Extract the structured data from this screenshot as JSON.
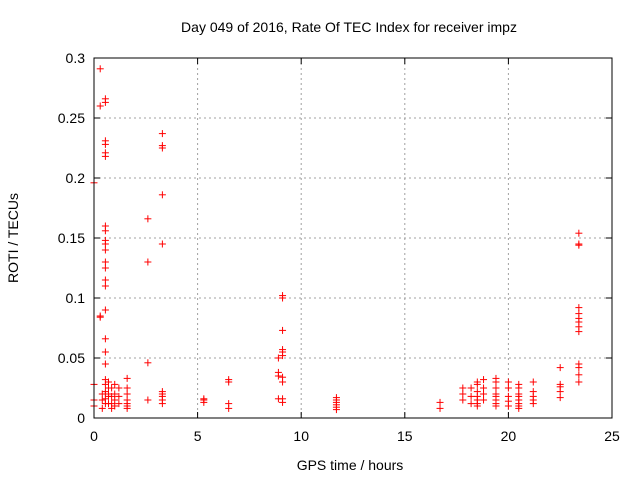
{
  "chart_data": {
    "type": "scatter",
    "title": "Day 049 of 2016, Rate Of TEC Index for receiver impz",
    "xlabel": "GPS time / hours",
    "ylabel": "ROTI / TECUs",
    "xlim": [
      0,
      25
    ],
    "ylim": [
      0,
      0.3
    ],
    "xticks": [
      0,
      5,
      10,
      15,
      20,
      25
    ],
    "xtick_labels": [
      "0",
      "5",
      "10",
      "15",
      "20",
      "25"
    ],
    "yticks": [
      0,
      0.05,
      0.1,
      0.15,
      0.2,
      0.25,
      0.3
    ],
    "ytick_labels": [
      "0",
      "0.05",
      "0.1",
      "0.15",
      "0.2",
      "0.25",
      "0.3"
    ],
    "grid": true,
    "marker": "+",
    "color": "#ff0000",
    "series": [
      {
        "name": "ROTI",
        "points": [
          [
            0.0,
            0.196
          ],
          [
            0.0,
            0.028
          ],
          [
            0.0,
            0.015
          ],
          [
            0.0,
            0.01
          ],
          [
            0.3,
            0.291
          ],
          [
            0.3,
            0.26
          ],
          [
            0.3,
            0.085
          ],
          [
            0.3,
            0.084
          ],
          [
            0.4,
            0.02
          ],
          [
            0.4,
            0.015
          ],
          [
            0.4,
            0.008
          ],
          [
            0.55,
            0.266
          ],
          [
            0.55,
            0.263
          ],
          [
            0.55,
            0.231
          ],
          [
            0.55,
            0.228
          ],
          [
            0.55,
            0.221
          ],
          [
            0.55,
            0.218
          ],
          [
            0.55,
            0.16
          ],
          [
            0.55,
            0.156
          ],
          [
            0.55,
            0.148
          ],
          [
            0.55,
            0.145
          ],
          [
            0.55,
            0.14
          ],
          [
            0.55,
            0.13
          ],
          [
            0.55,
            0.125
          ],
          [
            0.55,
            0.115
          ],
          [
            0.55,
            0.11
          ],
          [
            0.55,
            0.09
          ],
          [
            0.55,
            0.066
          ],
          [
            0.55,
            0.055
          ],
          [
            0.55,
            0.045
          ],
          [
            0.55,
            0.032
          ],
          [
            0.55,
            0.028
          ],
          [
            0.55,
            0.022
          ],
          [
            0.55,
            0.02
          ],
          [
            0.55,
            0.016
          ],
          [
            0.55,
            0.012
          ],
          [
            0.7,
            0.03
          ],
          [
            0.7,
            0.025
          ],
          [
            0.7,
            0.02
          ],
          [
            0.7,
            0.018
          ],
          [
            0.7,
            0.012
          ],
          [
            0.85,
            0.025
          ],
          [
            0.85,
            0.018
          ],
          [
            0.85,
            0.012
          ],
          [
            0.85,
            0.008
          ],
          [
            1.0,
            0.028
          ],
          [
            1.0,
            0.02
          ],
          [
            1.0,
            0.015
          ],
          [
            1.0,
            0.01
          ],
          [
            1.2,
            0.025
          ],
          [
            1.2,
            0.018
          ],
          [
            1.2,
            0.012
          ],
          [
            1.6,
            0.033
          ],
          [
            1.6,
            0.025
          ],
          [
            1.6,
            0.02
          ],
          [
            1.6,
            0.015
          ],
          [
            1.6,
            0.012
          ],
          [
            1.6,
            0.01
          ],
          [
            1.6,
            0.008
          ],
          [
            2.6,
            0.166
          ],
          [
            2.6,
            0.13
          ],
          [
            2.6,
            0.046
          ],
          [
            2.6,
            0.015
          ],
          [
            3.3,
            0.237
          ],
          [
            3.3,
            0.227
          ],
          [
            3.3,
            0.225
          ],
          [
            3.3,
            0.186
          ],
          [
            3.3,
            0.145
          ],
          [
            3.3,
            0.022
          ],
          [
            3.3,
            0.02
          ],
          [
            3.3,
            0.018
          ],
          [
            3.3,
            0.015
          ],
          [
            3.3,
            0.012
          ],
          [
            5.3,
            0.016
          ],
          [
            5.3,
            0.015
          ],
          [
            5.3,
            0.013
          ],
          [
            6.5,
            0.032
          ],
          [
            6.5,
            0.03
          ],
          [
            6.5,
            0.012
          ],
          [
            6.5,
            0.008
          ],
          [
            8.9,
            0.05
          ],
          [
            8.9,
            0.038
          ],
          [
            8.9,
            0.035
          ],
          [
            8.9,
            0.016
          ],
          [
            9.1,
            0.102
          ],
          [
            9.1,
            0.1
          ],
          [
            9.1,
            0.073
          ],
          [
            9.1,
            0.057
          ],
          [
            9.1,
            0.055
          ],
          [
            9.1,
            0.052
          ],
          [
            9.1,
            0.034
          ],
          [
            9.1,
            0.03
          ],
          [
            9.1,
            0.016
          ],
          [
            9.1,
            0.013
          ],
          [
            11.7,
            0.017
          ],
          [
            11.7,
            0.015
          ],
          [
            11.7,
            0.013
          ],
          [
            11.7,
            0.011
          ],
          [
            11.7,
            0.009
          ],
          [
            11.7,
            0.007
          ],
          [
            16.7,
            0.013
          ],
          [
            16.7,
            0.008
          ],
          [
            17.8,
            0.025
          ],
          [
            17.8,
            0.02
          ],
          [
            17.8,
            0.015
          ],
          [
            18.2,
            0.025
          ],
          [
            18.2,
            0.018
          ],
          [
            18.2,
            0.012
          ],
          [
            18.5,
            0.03
          ],
          [
            18.5,
            0.028
          ],
          [
            18.5,
            0.022
          ],
          [
            18.5,
            0.018
          ],
          [
            18.5,
            0.015
          ],
          [
            18.5,
            0.012
          ],
          [
            18.5,
            0.01
          ],
          [
            18.8,
            0.032
          ],
          [
            18.8,
            0.025
          ],
          [
            18.8,
            0.02
          ],
          [
            18.8,
            0.015
          ],
          [
            19.4,
            0.033
          ],
          [
            19.4,
            0.03
          ],
          [
            19.4,
            0.025
          ],
          [
            19.4,
            0.02
          ],
          [
            19.4,
            0.018
          ],
          [
            19.4,
            0.015
          ],
          [
            19.4,
            0.012
          ],
          [
            19.4,
            0.01
          ],
          [
            20.0,
            0.03
          ],
          [
            20.0,
            0.025
          ],
          [
            20.0,
            0.018
          ],
          [
            20.0,
            0.014
          ],
          [
            20.0,
            0.01
          ],
          [
            20.5,
            0.028
          ],
          [
            20.5,
            0.025
          ],
          [
            20.5,
            0.02
          ],
          [
            20.5,
            0.018
          ],
          [
            20.5,
            0.015
          ],
          [
            20.5,
            0.012
          ],
          [
            20.5,
            0.01
          ],
          [
            20.5,
            0.008
          ],
          [
            21.2,
            0.03
          ],
          [
            21.2,
            0.022
          ],
          [
            21.2,
            0.018
          ],
          [
            21.2,
            0.015
          ],
          [
            21.2,
            0.012
          ],
          [
            22.5,
            0.042
          ],
          [
            22.5,
            0.028
          ],
          [
            22.5,
            0.026
          ],
          [
            22.5,
            0.022
          ],
          [
            22.5,
            0.017
          ],
          [
            23.4,
            0.154
          ],
          [
            23.4,
            0.145
          ],
          [
            23.4,
            0.144
          ],
          [
            23.4,
            0.092
          ],
          [
            23.4,
            0.087
          ],
          [
            23.4,
            0.083
          ],
          [
            23.4,
            0.08
          ],
          [
            23.4,
            0.076
          ],
          [
            23.4,
            0.072
          ],
          [
            23.4,
            0.045
          ],
          [
            23.4,
            0.042
          ],
          [
            23.4,
            0.036
          ],
          [
            23.4,
            0.03
          ]
        ]
      }
    ]
  }
}
